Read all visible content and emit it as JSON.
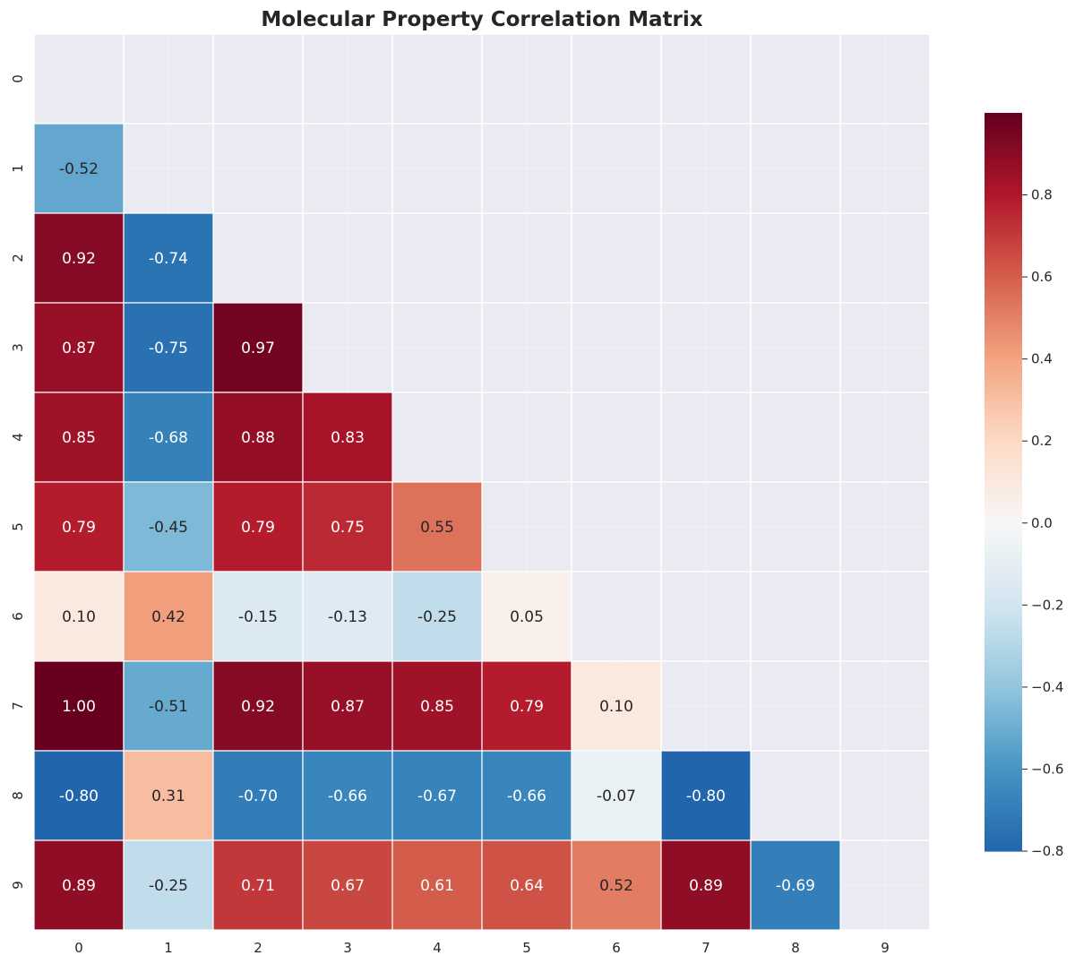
{
  "chart_data": {
    "type": "heatmap",
    "title": "Molecular Property Correlation Matrix",
    "xlabel": "",
    "ylabel": "",
    "mask": "upper triangle including diagonal",
    "row_labels": [
      "0",
      "1",
      "2",
      "3",
      "4",
      "5",
      "6",
      "7",
      "8",
      "9"
    ],
    "col_labels": [
      "0",
      "1",
      "2",
      "3",
      "4",
      "5",
      "6",
      "7",
      "8",
      "9"
    ],
    "values": [
      [],
      [
        -0.52
      ],
      [
        0.92,
        -0.74
      ],
      [
        0.87,
        -0.75,
        0.97
      ],
      [
        0.85,
        -0.68,
        0.88,
        0.83
      ],
      [
        0.79,
        -0.45,
        0.79,
        0.75,
        0.55
      ],
      [
        0.1,
        0.42,
        -0.15,
        -0.13,
        -0.25,
        0.05
      ],
      [
        1.0,
        -0.51,
        0.92,
        0.87,
        0.85,
        0.79,
        0.1
      ],
      [
        -0.8,
        0.31,
        -0.7,
        -0.66,
        -0.67,
        -0.66,
        -0.07,
        -0.8
      ],
      [
        0.89,
        -0.25,
        0.71,
        0.67,
        0.61,
        0.64,
        0.52,
        0.89,
        -0.69
      ]
    ],
    "value_format": "2 decimals",
    "colormap": "RdBu_r",
    "colorbar": {
      "vmin": -0.8,
      "vmax": 1.0,
      "ticks": [
        -0.8,
        -0.6,
        -0.4,
        -0.2,
        0.0,
        0.2,
        0.4,
        0.6,
        0.8
      ],
      "tick_labels": [
        "−0.8",
        "−0.6",
        "−0.4",
        "−0.2",
        "0.0",
        "0.2",
        "0.4",
        "0.6",
        "0.8"
      ]
    },
    "colors": {
      "background": "#EAEAF2",
      "grid": "#FFFFFF",
      "text_dark": "#262626",
      "text_light": "#FFFFFF"
    }
  }
}
